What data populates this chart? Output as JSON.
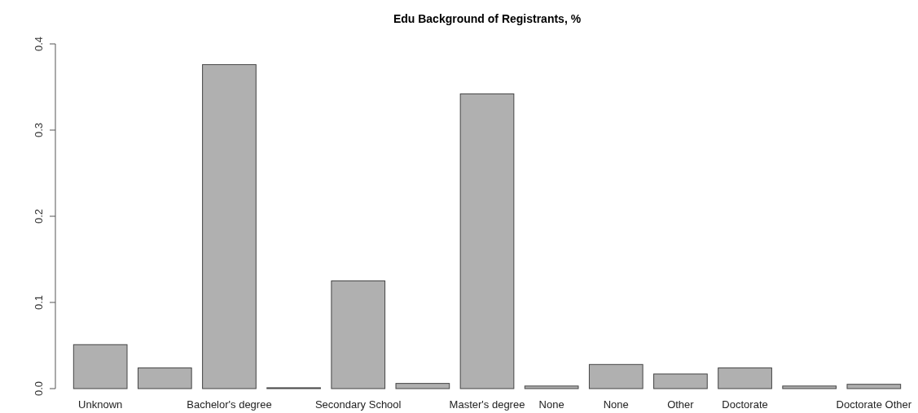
{
  "chart_data": {
    "type": "bar",
    "title": "Edu Background of Registrants, %",
    "categories": [
      "Unknown",
      null,
      "Bachelor's degree",
      null,
      "Secondary School",
      null,
      "Master's degree",
      "None",
      "None",
      "Other",
      "Doctorate",
      null,
      "Doctorate Other"
    ],
    "values": [
      0.051,
      0.024,
      0.376,
      0.001,
      0.125,
      0.006,
      0.342,
      0.003,
      0.028,
      0.017,
      0.024,
      0.003,
      0.005
    ],
    "color": "#b0b0b0",
    "ylim": [
      0,
      0.4
    ],
    "yticks": [
      {
        "value": 0,
        "label": "0.0"
      },
      0.1,
      0.2,
      0.3,
      0.4
    ]
  }
}
